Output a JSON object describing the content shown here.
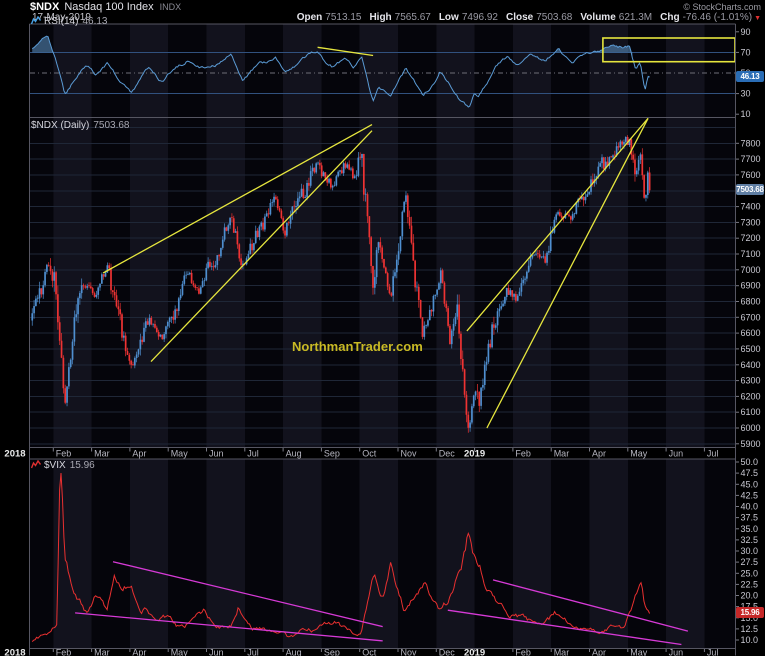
{
  "header": {
    "symbol": "$NDX",
    "name": "Nasdaq 100 Index",
    "exchange": "INDX",
    "date": "17-May-2019",
    "copyright": "© StockCharts.com",
    "quote": {
      "items": [
        {
          "label": "Open",
          "value": "7513.15"
        },
        {
          "label": "High",
          "value": "7565.67"
        },
        {
          "label": "Low",
          "value": "7496.92"
        },
        {
          "label": "Close",
          "value": "7503.68"
        },
        {
          "label": "Volume",
          "value": "621.3M"
        },
        {
          "label": "Chg",
          "value": "-76.46 (-1.01%)"
        }
      ],
      "chg_direction": "down"
    }
  },
  "watermark": "NorthmanTrader.com",
  "x_axis": {
    "months": [
      {
        "label": "2018",
        "year": true
      },
      {
        "label": "Feb"
      },
      {
        "label": "Mar"
      },
      {
        "label": "Apr"
      },
      {
        "label": "May"
      },
      {
        "label": "Jun"
      },
      {
        "label": "Jul"
      },
      {
        "label": "Aug"
      },
      {
        "label": "Sep"
      },
      {
        "label": "Oct"
      },
      {
        "label": "Nov"
      },
      {
        "label": "Dec"
      },
      {
        "label": "2019",
        "year": true
      },
      {
        "label": "Feb"
      },
      {
        "label": "Mar"
      },
      {
        "label": "Apr"
      },
      {
        "label": "May"
      },
      {
        "label": "Jun"
      },
      {
        "label": "Jul"
      }
    ]
  },
  "colors": {
    "up": "#4f8fd0",
    "down": "#ef3333",
    "rsi_line": "#5b9bd5",
    "rsi_fill": "rgba(100,160,215,0.5)",
    "vix_line": "#e93030",
    "yellow": "#e6e63e",
    "magenta": "#d63ad6",
    "stripe_light": "#12121d",
    "stripe_dark": "#05050b",
    "grid": "#1f2737",
    "rsi_band": "#31517e",
    "rsi_mid": "#6e6e78",
    "frame": "#565662",
    "tick_text": "#c9c9d2",
    "month_text": "#b6b6c0",
    "year_text": "#eceded"
  },
  "chart_data": [
    {
      "id": "rsi",
      "type": "line",
      "label": "RSI(14)",
      "value": "46.13",
      "tag": "46.13",
      "ylim": [
        0,
        100
      ],
      "yticks": [
        90,
        70,
        50,
        30,
        10
      ],
      "hlines": [
        {
          "v": 70,
          "style": "solid"
        },
        {
          "v": 50,
          "style": "dashed"
        },
        {
          "v": 30,
          "style": "solid"
        }
      ],
      "fill_above": 70,
      "anchors": [
        [
          0.45,
          72
        ],
        [
          0.7,
          83
        ],
        [
          0.85,
          87
        ],
        [
          1.05,
          65
        ],
        [
          1.3,
          27
        ],
        [
          1.6,
          48
        ],
        [
          1.85,
          57
        ],
        [
          2.1,
          48
        ],
        [
          2.42,
          61
        ],
        [
          2.75,
          39
        ],
        [
          3.05,
          33
        ],
        [
          3.5,
          55
        ],
        [
          3.85,
          42
        ],
        [
          4.2,
          55
        ],
        [
          4.5,
          63
        ],
        [
          4.8,
          54
        ],
        [
          5.3,
          60
        ],
        [
          5.65,
          67
        ],
        [
          5.95,
          44
        ],
        [
          6.4,
          59
        ],
        [
          6.8,
          66
        ],
        [
          7.05,
          50
        ],
        [
          7.4,
          61
        ],
        [
          7.9,
          71
        ],
        [
          8.3,
          55
        ],
        [
          8.65,
          64
        ],
        [
          8.85,
          57
        ],
        [
          9.05,
          64
        ],
        [
          9.35,
          22
        ],
        [
          9.5,
          38
        ],
        [
          9.8,
          26
        ],
        [
          10.2,
          56
        ],
        [
          10.65,
          27
        ],
        [
          11.1,
          51
        ],
        [
          11.35,
          37
        ],
        [
          11.85,
          16
        ],
        [
          12.0,
          28
        ],
        [
          12.1,
          25
        ],
        [
          12.5,
          55
        ],
        [
          12.85,
          65
        ],
        [
          13.1,
          59
        ],
        [
          13.5,
          67
        ],
        [
          13.85,
          64
        ],
        [
          14.2,
          72
        ],
        [
          14.55,
          61
        ],
        [
          14.85,
          67
        ],
        [
          15.3,
          73
        ],
        [
          15.8,
          76
        ],
        [
          16.05,
          77
        ],
        [
          16.2,
          52
        ],
        [
          16.33,
          58
        ],
        [
          16.45,
          33
        ],
        [
          16.52,
          49
        ],
        [
          16.57,
          46.13
        ]
      ],
      "annotations": [
        {
          "kind": "line",
          "from": [
            7.9,
            75
          ],
          "to": [
            9.35,
            67
          ],
          "color": "yellow"
        },
        {
          "kind": "rect",
          "from": [
            15.35,
            84
          ],
          "to": [
            18.8,
            61
          ],
          "color": "yellow"
        }
      ]
    },
    {
      "id": "ndx",
      "type": "ohlc",
      "label": "$NDX (Daily)",
      "value": "7503.68",
      "tag": "7503.68",
      "ylim": [
        5880,
        7960
      ],
      "yticks": [
        7800,
        7700,
        7600,
        7500,
        7400,
        7300,
        7200,
        7100,
        7000,
        6900,
        6800,
        6700,
        6600,
        6500,
        6400,
        6300,
        6200,
        6100,
        6000,
        5900
      ],
      "anchors": [
        [
          0.45,
          6680
        ],
        [
          0.85,
          7025
        ],
        [
          1.05,
          6870
        ],
        [
          1.3,
          6164
        ],
        [
          1.6,
          6770
        ],
        [
          1.85,
          6935
        ],
        [
          2.1,
          6830
        ],
        [
          2.42,
          7025
        ],
        [
          2.75,
          6640
        ],
        [
          3.05,
          6390
        ],
        [
          3.5,
          6700
        ],
        [
          3.85,
          6525
        ],
        [
          4.2,
          6750
        ],
        [
          4.5,
          6990
        ],
        [
          4.8,
          6880
        ],
        [
          5.3,
          7110
        ],
        [
          5.65,
          7315
        ],
        [
          5.95,
          7030
        ],
        [
          6.4,
          7280
        ],
        [
          6.8,
          7460
        ],
        [
          7.05,
          7245
        ],
        [
          7.4,
          7450
        ],
        [
          7.9,
          7680
        ],
        [
          8.3,
          7525
        ],
        [
          8.65,
          7665
        ],
        [
          8.85,
          7580
        ],
        [
          9.05,
          7690
        ],
        [
          9.35,
          6955
        ],
        [
          9.5,
          7185
        ],
        [
          9.8,
          6835
        ],
        [
          10.2,
          7430
        ],
        [
          10.65,
          6575
        ],
        [
          11.1,
          7000
        ],
        [
          11.35,
          6565
        ],
        [
          11.55,
          6750
        ],
        [
          11.85,
          5895
        ],
        [
          12.0,
          6270
        ],
        [
          12.1,
          6170
        ],
        [
          12.5,
          6680
        ],
        [
          12.85,
          6870
        ],
        [
          13.1,
          6815
        ],
        [
          13.5,
          7060
        ],
        [
          13.85,
          7090
        ],
        [
          14.2,
          7395
        ],
        [
          14.55,
          7330
        ],
        [
          14.85,
          7440
        ],
        [
          15.3,
          7655
        ],
        [
          15.8,
          7790
        ],
        [
          16.05,
          7848
        ],
        [
          16.2,
          7605
        ],
        [
          16.33,
          7665
        ],
        [
          16.45,
          7340
        ],
        [
          16.52,
          7575
        ],
        [
          16.57,
          7503.68
        ]
      ],
      "annotations": [
        {
          "kind": "line",
          "from": [
            2.3,
            6980
          ],
          "to": [
            9.32,
            7918
          ],
          "color": "yellow"
        },
        {
          "kind": "line",
          "from": [
            3.55,
            6420
          ],
          "to": [
            9.32,
            7880
          ],
          "color": "yellow"
        },
        {
          "kind": "line",
          "from": [
            11.8,
            6614
          ],
          "to": [
            16.53,
            7958
          ],
          "color": "yellow"
        },
        {
          "kind": "line",
          "from": [
            12.32,
            6000
          ],
          "to": [
            16.53,
            7958
          ],
          "color": "yellow"
        }
      ]
    },
    {
      "id": "vix",
      "type": "line",
      "label": "$VIX",
      "value": "15.96",
      "tag": "15.96",
      "ylim": [
        9,
        50.9
      ],
      "yticks": [
        50,
        47.5,
        45,
        42.5,
        40,
        37.5,
        35,
        32.5,
        30,
        27.5,
        25,
        22.5,
        20,
        17.5,
        15,
        12.5,
        10
      ],
      "anchors": [
        [
          0.45,
          9.8
        ],
        [
          0.85,
          11.2
        ],
        [
          1.1,
          13.5
        ],
        [
          1.18,
          50.3
        ],
        [
          1.3,
          29
        ],
        [
          1.6,
          19.5
        ],
        [
          1.85,
          16
        ],
        [
          2.1,
          20
        ],
        [
          2.4,
          16.5
        ],
        [
          2.6,
          24.9
        ],
        [
          2.8,
          21
        ],
        [
          3.05,
          22.5
        ],
        [
          3.3,
          17
        ],
        [
          3.6,
          15.2
        ],
        [
          3.85,
          15.9
        ],
        [
          4.2,
          13.2
        ],
        [
          4.55,
          13.4
        ],
        [
          4.95,
          17
        ],
        [
          5.2,
          12.8
        ],
        [
          5.65,
          13.3
        ],
        [
          5.85,
          17.2
        ],
        [
          6.2,
          12.6
        ],
        [
          6.8,
          11.8
        ],
        [
          7.2,
          10.9
        ],
        [
          7.6,
          12.3
        ],
        [
          7.95,
          12.9
        ],
        [
          8.35,
          14.7
        ],
        [
          8.65,
          11.9
        ],
        [
          9.05,
          12.1
        ],
        [
          9.38,
          25
        ],
        [
          9.6,
          19.8
        ],
        [
          9.82,
          26.5
        ],
        [
          10.2,
          16.3
        ],
        [
          10.68,
          23
        ],
        [
          11.05,
          16.4
        ],
        [
          11.45,
          21.4
        ],
        [
          11.65,
          25.5
        ],
        [
          11.85,
          36.1
        ],
        [
          12.0,
          28.5
        ],
        [
          12.15,
          25.5
        ],
        [
          12.5,
          19.2
        ],
        [
          12.85,
          16.6
        ],
        [
          13.2,
          15
        ],
        [
          13.6,
          13.9
        ],
        [
          13.85,
          13.6
        ],
        [
          14.1,
          16.5
        ],
        [
          14.45,
          13.6
        ],
        [
          14.85,
          12.4
        ],
        [
          15.3,
          12.1
        ],
        [
          15.85,
          13.1
        ],
        [
          16.1,
          16.2
        ],
        [
          16.35,
          23
        ],
        [
          16.45,
          18
        ],
        [
          16.57,
          15.96
        ]
      ],
      "annotations": [
        {
          "kind": "line",
          "from": [
            2.56,
            27.6
          ],
          "to": [
            9.6,
            13.0
          ],
          "color": "magenta"
        },
        {
          "kind": "line",
          "from": [
            1.57,
            16.1
          ],
          "to": [
            9.6,
            9.8
          ],
          "color": "magenta"
        },
        {
          "kind": "line",
          "from": [
            12.48,
            23.5
          ],
          "to": [
            17.57,
            12.0
          ],
          "color": "magenta"
        },
        {
          "kind": "line",
          "from": [
            11.3,
            16.7
          ],
          "to": [
            17.4,
            9.0
          ],
          "color": "magenta"
        }
      ]
    }
  ]
}
